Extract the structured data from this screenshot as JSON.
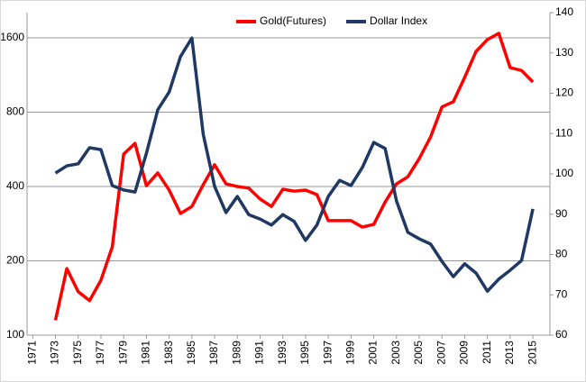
{
  "chart_data": {
    "type": "line",
    "x": [
      1973,
      1974,
      1975,
      1976,
      1977,
      1978,
      1979,
      1980,
      1981,
      1982,
      1983,
      1984,
      1985,
      1986,
      1987,
      1988,
      1989,
      1990,
      1991,
      1992,
      1993,
      1994,
      1995,
      1996,
      1997,
      1998,
      1999,
      2000,
      2001,
      2002,
      2003,
      2004,
      2005,
      2006,
      2007,
      2008,
      2009,
      2010,
      2011,
      2012,
      2013,
      2014,
      2015
    ],
    "xlim": [
      1970.5,
      2016.5
    ],
    "xticks": [
      1971,
      1973,
      1975,
      1977,
      1979,
      1981,
      1983,
      1985,
      1987,
      1989,
      1991,
      1993,
      1995,
      1997,
      1999,
      2001,
      2003,
      2005,
      2007,
      2009,
      2011,
      2013,
      2015
    ],
    "ylim": [
      100,
      2025
    ],
    "yticks": [
      100,
      200,
      400,
      800,
      1600
    ],
    "ylog": true,
    "y2lim": [
      60,
      140
    ],
    "y2ticks": [
      60,
      70,
      80,
      90,
      100,
      110,
      120,
      130,
      140
    ],
    "grid": true,
    "legend": "top",
    "series": [
      {
        "name": "Gold(Futures)",
        "color": "#ff0000",
        "values": [
          115,
          186,
          150,
          138,
          167,
          228,
          541,
          598,
          403,
          454,
          387,
          311,
          332,
          407,
          490,
          410,
          400,
          394,
          356,
          332,
          390,
          383,
          387,
          371,
          291,
          291,
          291,
          274,
          281,
          346,
          410,
          438,
          519,
          635,
          840,
          882,
          1107,
          1410,
          1575,
          1669,
          1212,
          1181,
          1060
        ]
      },
      {
        "name": "Dollar Index",
        "color": "#1f3864",
        "axis": "y2",
        "values": [
          100.2,
          102.0,
          102.5,
          106.5,
          106.0,
          97.1,
          96.0,
          95.5,
          105.1,
          115.9,
          120.3,
          129.1,
          133.7,
          109.8,
          96.9,
          90.4,
          94.4,
          89.9,
          88.8,
          87.3,
          89.9,
          88.2,
          83.5,
          87.3,
          94.4,
          98.4,
          97.1,
          101.6,
          107.8,
          106.3,
          93.3,
          85.5,
          83.9,
          82.6,
          78.3,
          74.5,
          77.7,
          75.4,
          70.9,
          73.9,
          76.1,
          78.5,
          91.3
        ]
      }
    ]
  }
}
